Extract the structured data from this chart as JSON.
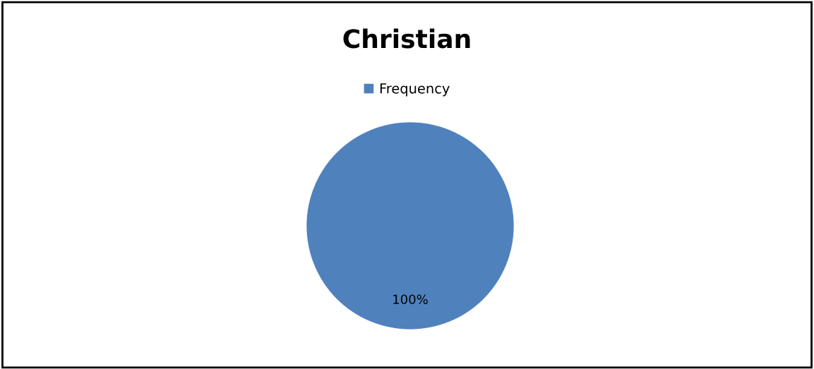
{
  "chart_data": {
    "type": "pie",
    "title": "Christian",
    "categories": [
      "Frequency"
    ],
    "values": [
      100
    ],
    "colors": [
      "#4f81bd"
    ],
    "value_labels": [
      "100%"
    ],
    "legend": "top"
  }
}
